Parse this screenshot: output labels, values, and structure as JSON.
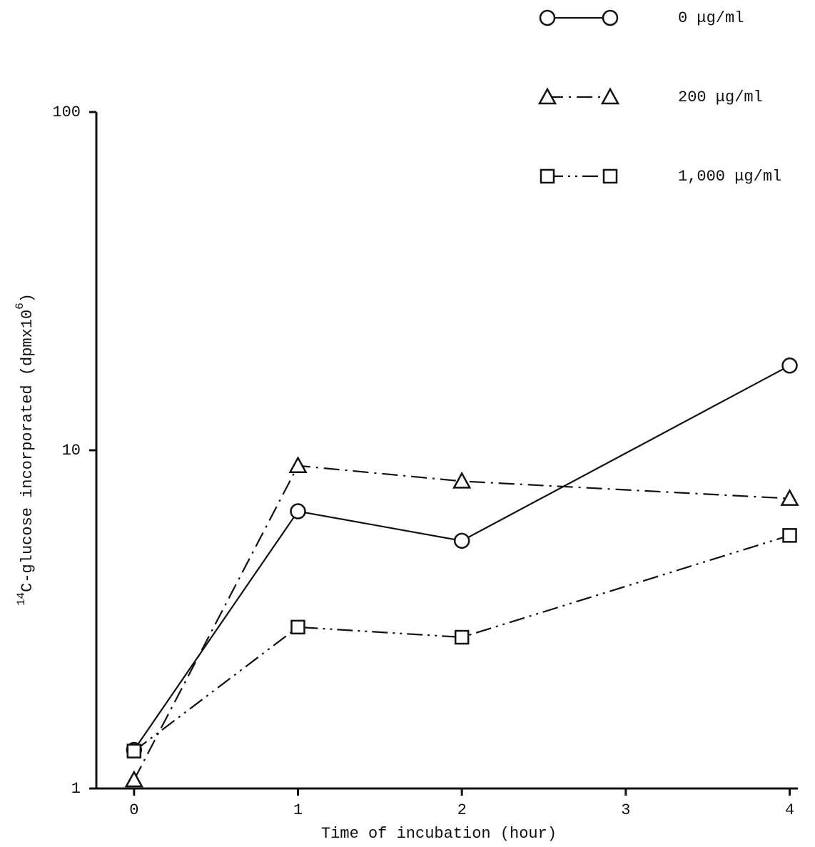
{
  "chart_data": {
    "type": "line",
    "x_label": "Time of incubation (hour)",
    "y_label_parts": [
      "14",
      "C-glucose incorporated (dpmx10",
      "6",
      ")"
    ],
    "x": [
      0,
      1,
      2,
      4
    ],
    "xlim": [
      -0.23,
      4.05
    ],
    "xticks": [
      0,
      1,
      2,
      3,
      4
    ],
    "ylim": [
      1,
      100
    ],
    "yticks": [
      1,
      10,
      100
    ],
    "log_y": true,
    "grid": false,
    "legend": "top-right",
    "series": [
      {
        "name": "0 μg/ml",
        "color": "#111111",
        "marker": "circle",
        "dash": "solid",
        "values": [
          1.3,
          6.6,
          5.4,
          17.8
        ]
      },
      {
        "name": "200 μg/ml",
        "color": "#111111",
        "marker": "triangle",
        "dash": "dashdot",
        "values": [
          1.06,
          9.0,
          8.1,
          7.2
        ]
      },
      {
        "name": "1,000 μg/ml",
        "color": "#111111",
        "marker": "square",
        "dash": "dashdotdot",
        "values": [
          1.29,
          3.0,
          2.8,
          5.6
        ]
      }
    ]
  }
}
